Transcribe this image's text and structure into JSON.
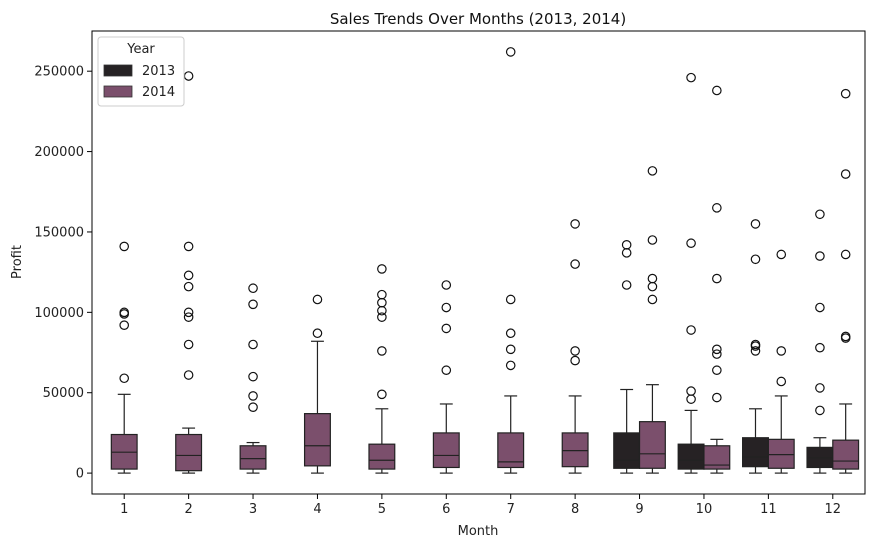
{
  "chart_data": {
    "type": "box",
    "title": "Sales Trends Over Months (2013, 2014)",
    "xlabel": "Month",
    "ylabel": "Profit",
    "categories": [
      "1",
      "2",
      "3",
      "4",
      "5",
      "6",
      "7",
      "8",
      "9",
      "10",
      "11",
      "12"
    ],
    "yticks": [
      0,
      50000,
      100000,
      150000,
      200000,
      250000
    ],
    "ylim": [
      -13000,
      275000
    ],
    "legend": {
      "title": "Year",
      "placement": "upper-left",
      "entries": [
        "2013",
        "2014"
      ]
    },
    "series": [
      {
        "name": "2013",
        "color": "#262224",
        "boxes": [
          {
            "month": "9",
            "whislo": 0,
            "q1": 3000,
            "med": 8000,
            "q3": 25000,
            "whishi": 52000,
            "fliers": [
              117000,
              137000,
              142000
            ]
          },
          {
            "month": "10",
            "whislo": 0,
            "q1": 2500,
            "med": 8000,
            "q3": 18000,
            "whishi": 39000,
            "fliers": [
              46000,
              51000,
              89000,
              143000,
              246000
            ]
          },
          {
            "month": "11",
            "whislo": 0,
            "q1": 4000,
            "med": 10000,
            "q3": 22000,
            "whishi": 40000,
            "fliers": [
              76000,
              79000,
              80000,
              133000,
              155000
            ]
          },
          {
            "month": "12",
            "whislo": 0,
            "q1": 3500,
            "med": 9500,
            "q3": 16000,
            "whishi": 22000,
            "fliers": [
              39000,
              53000,
              78000,
              103000,
              135000,
              161000
            ]
          }
        ]
      },
      {
        "name": "2014",
        "color": "#7b4f6c",
        "boxes": [
          {
            "month": "1",
            "whislo": 0,
            "q1": 2500,
            "med": 13000,
            "q3": 24000,
            "whishi": 49000,
            "fliers": [
              59000,
              92000,
              99000,
              100000,
              141000
            ]
          },
          {
            "month": "2",
            "whislo": 0,
            "q1": 1500,
            "med": 11000,
            "q3": 24000,
            "whishi": 28000,
            "fliers": [
              61000,
              80000,
              97000,
              100000,
              116000,
              123000,
              141000,
              247000
            ]
          },
          {
            "month": "3",
            "whislo": 0,
            "q1": 2500,
            "med": 9000,
            "q3": 17000,
            "whishi": 19000,
            "fliers": [
              41000,
              48000,
              60000,
              80000,
              105000,
              115000
            ]
          },
          {
            "month": "4",
            "whislo": 0,
            "q1": 4500,
            "med": 17000,
            "q3": 37000,
            "whishi": 82000,
            "fliers": [
              87000,
              108000
            ]
          },
          {
            "month": "5",
            "whislo": 0,
            "q1": 2500,
            "med": 8000,
            "q3": 18000,
            "whishi": 40000,
            "fliers": [
              49000,
              76000,
              97000,
              101000,
              106000,
              111000,
              127000
            ]
          },
          {
            "month": "6",
            "whislo": 0,
            "q1": 3500,
            "med": 11000,
            "q3": 25000,
            "whishi": 43000,
            "fliers": [
              64000,
              90000,
              103000,
              117000
            ]
          },
          {
            "month": "7",
            "whislo": 0,
            "q1": 3500,
            "med": 7000,
            "q3": 25000,
            "whishi": 48000,
            "fliers": [
              67000,
              77000,
              87000,
              108000,
              262000
            ]
          },
          {
            "month": "8",
            "whislo": 0,
            "q1": 4000,
            "med": 14000,
            "q3": 25000,
            "whishi": 48000,
            "fliers": [
              70000,
              76000,
              130000,
              155000
            ]
          },
          {
            "month": "9",
            "whislo": 0,
            "q1": 3000,
            "med": 12000,
            "q3": 32000,
            "whishi": 55000,
            "fliers": [
              108000,
              116000,
              121000,
              145000,
              188000
            ]
          },
          {
            "month": "10",
            "whislo": 0,
            "q1": 2500,
            "med": 5000,
            "q3": 17000,
            "whishi": 21000,
            "fliers": [
              47000,
              64000,
              74000,
              77000,
              121000,
              165000,
              238000
            ]
          },
          {
            "month": "11",
            "whislo": 0,
            "q1": 3000,
            "med": 11500,
            "q3": 21000,
            "whishi": 48000,
            "fliers": [
              57000,
              76000,
              136000
            ]
          },
          {
            "month": "12",
            "whislo": 0,
            "q1": 2500,
            "med": 7500,
            "q3": 20500,
            "whishi": 43000,
            "fliers": [
              84000,
              85000,
              136000,
              186000,
              236000
            ]
          }
        ]
      }
    ]
  }
}
